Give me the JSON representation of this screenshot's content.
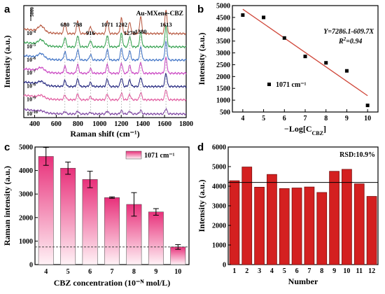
{
  "panels": {
    "a": {
      "label": "a"
    },
    "b": {
      "label": "b"
    },
    "c": {
      "label": "c"
    },
    "d": {
      "label": "d"
    }
  },
  "chart_data": [
    {
      "type": "line",
      "panel": "a",
      "title": "",
      "annotation": "Au-MXene-CBZ",
      "scale_bar": "5000",
      "xlabel": "Raman shift (cm⁻¹)",
      "ylabel": "Intensity (a.u.)",
      "xlim": [
        300,
        1800
      ],
      "xticks": [
        "400",
        "600",
        "800",
        "1000",
        "1200",
        "1400",
        "1600",
        "1800"
      ],
      "peaks": [
        "680",
        "798",
        "916",
        "1071",
        "1202",
        "1278",
        "1380",
        "1613"
      ],
      "peak_positions": [
        680,
        798,
        916,
        1071,
        1202,
        1278,
        1380,
        1613
      ],
      "series": [
        {
          "label_base": "10",
          "label_exp": "-4",
          "color": "#b5533a",
          "offset": 0.0,
          "amplitude": 1.0
        },
        {
          "label_base": "10",
          "label_exp": "-5",
          "color": "#2e9e4a",
          "offset": 0.14,
          "amplitude": 0.88
        },
        {
          "label_base": "10",
          "label_exp": "-6",
          "color": "#3a6fc4",
          "offset": 0.28,
          "amplitude": 0.78
        },
        {
          "label_base": "10",
          "label_exp": "-7",
          "color": "#c83fc0",
          "offset": 0.42,
          "amplitude": 0.66
        },
        {
          "label_base": "10",
          "label_exp": "-8",
          "color": "#1b1e7a",
          "offset": 0.56,
          "amplitude": 0.56
        },
        {
          "label_base": "10",
          "label_exp": "-9",
          "color": "#e0569c",
          "offset": 0.7,
          "amplitude": 0.44
        },
        {
          "label_base": "10",
          "label_exp": "-10",
          "color": "#7a3fa0",
          "offset": 0.85,
          "amplitude": 0.22
        }
      ]
    },
    {
      "type": "scatter",
      "panel": "b",
      "title": "",
      "xlabel_prefix": "−Log[C",
      "xlabel_sub": "CBZ",
      "xlabel_suffix": "]",
      "ylabel": "Intensity (a.u.)",
      "xlim": [
        3.5,
        10.5
      ],
      "ylim": [
        500,
        5000
      ],
      "xticks": [
        4,
        5,
        6,
        7,
        8,
        9,
        10
      ],
      "yticks": [
        500,
        1000,
        1500,
        2000,
        2500,
        3000,
        3500,
        4000,
        4500,
        5000
      ],
      "x": [
        4,
        5,
        6,
        7,
        8,
        9,
        10
      ],
      "y": [
        4600,
        4500,
        3630,
        2850,
        2580,
        2240,
        780
      ],
      "fit": {
        "slope": -609.7,
        "intercept": 7286.1,
        "color": "#d0473a"
      },
      "equation": "Y=7286.1-609.7X",
      "r2_prefix": "R",
      "r2_sup": "2",
      "r2_suffix": "=0.94",
      "legend": "1071 cm⁻¹"
    },
    {
      "type": "bar",
      "panel": "c",
      "title": "",
      "xlabel": "CBZ concentration (10⁻ᴺ mol/L)",
      "ylabel": "Raman intensity (a.u.)",
      "categories": [
        "4",
        "5",
        "6",
        "7",
        "8",
        "9",
        "10"
      ],
      "values": [
        4600,
        4100,
        3620,
        2850,
        2560,
        2240,
        750
      ],
      "errors": [
        380,
        260,
        350,
        30,
        500,
        140,
        100
      ],
      "ylim": [
        0,
        5000
      ],
      "yticks": [
        0,
        1000,
        2000,
        3000,
        4000,
        5000
      ],
      "baseline": 750,
      "legend": "1071 cm⁻¹",
      "bar_color_top": "#e8307a",
      "bar_color_bottom": "#fff2f6"
    },
    {
      "type": "bar",
      "panel": "d",
      "title": "",
      "xlabel": "Number",
      "ylabel": "Intensity (a.u.)",
      "categories": [
        "1",
        "2",
        "3",
        "4",
        "5",
        "6",
        "7",
        "8",
        "9",
        "10",
        "11",
        "12"
      ],
      "values": [
        4280,
        4980,
        3950,
        4600,
        3880,
        3910,
        3960,
        3680,
        4760,
        4860,
        4120,
        3480
      ],
      "ylim": [
        0,
        6000
      ],
      "yticks": [
        0,
        1000,
        2000,
        3000,
        4000,
        5000,
        6000
      ],
      "mean_line": 4190,
      "annotation": "RSD:10.9%",
      "bar_color": "#d42020",
      "bar_edge": "#7a1010"
    }
  ]
}
